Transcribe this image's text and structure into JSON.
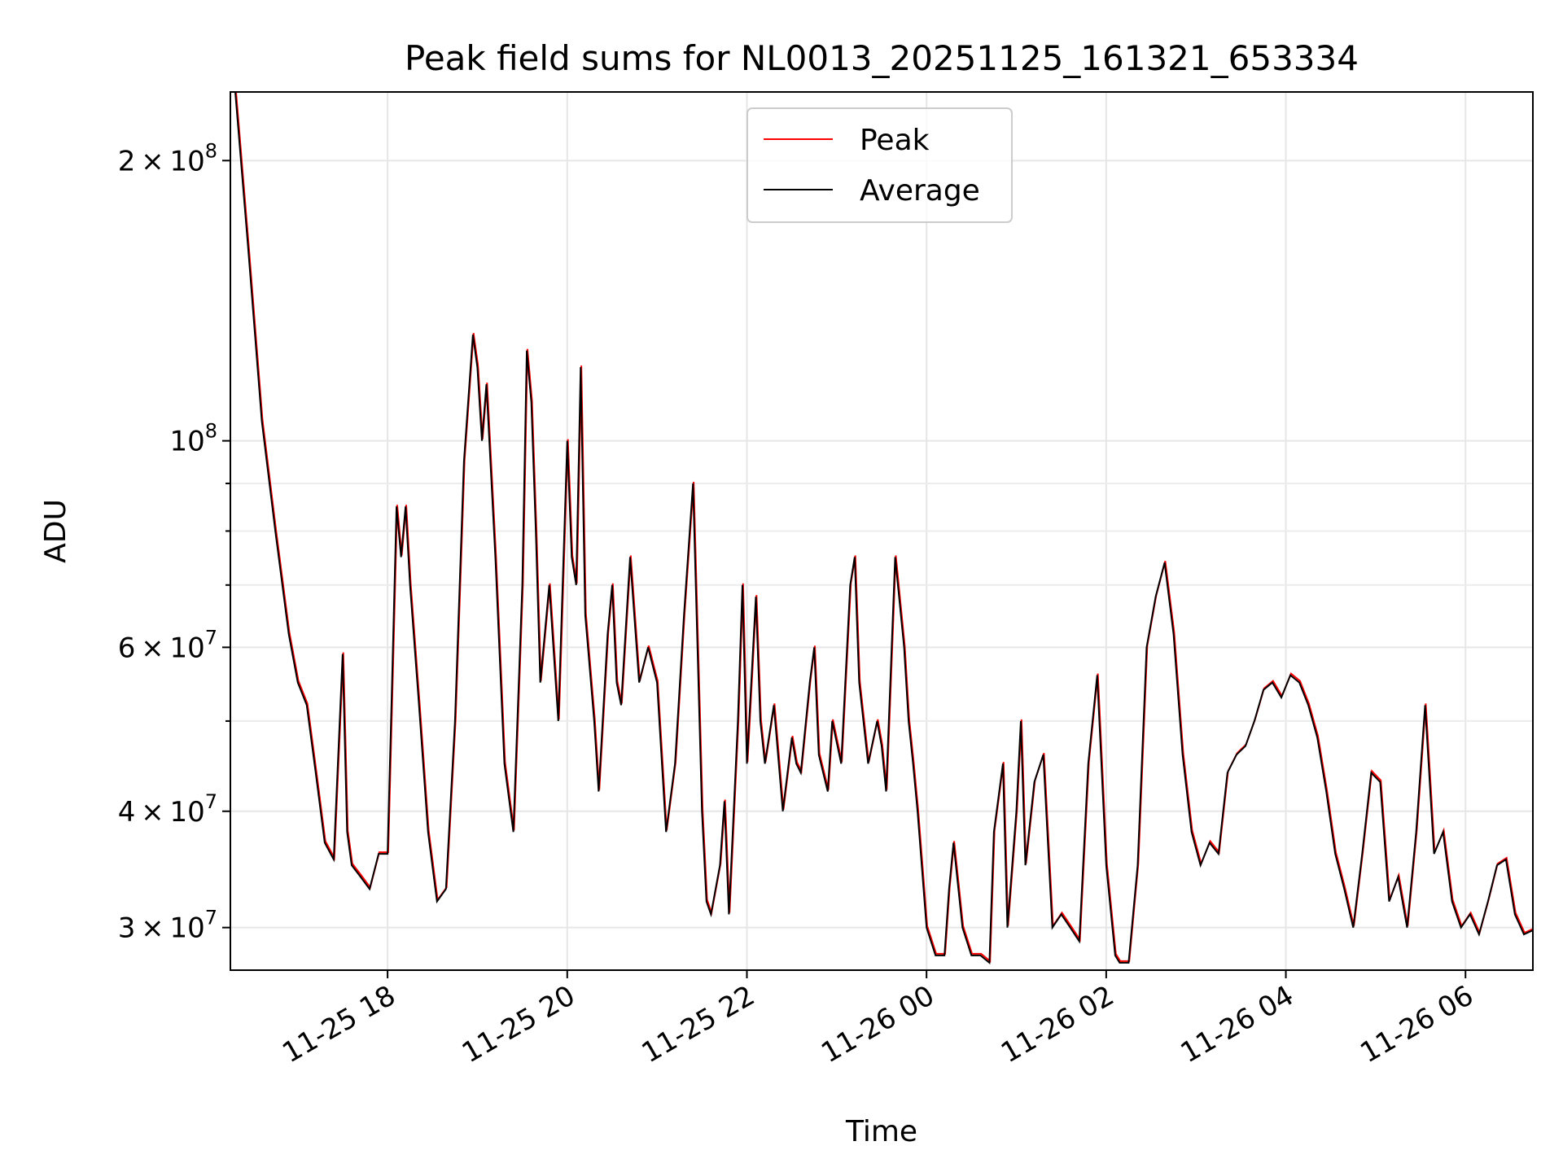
{
  "chart_data": {
    "type": "line",
    "title": "Peak field sums for NL0013_20251125_161321_653334",
    "xlabel": "Time",
    "ylabel": "ADU",
    "yscale": "log",
    "ylim": [
      27000000,
      237000000
    ],
    "xlim_hours": [
      16.25,
      30.75
    ],
    "grid": true,
    "legend_position": "upper center",
    "x_ticks": [
      {
        "hour": 18,
        "label": "11-25 18"
      },
      {
        "hour": 20,
        "label": "11-25 20"
      },
      {
        "hour": 22,
        "label": "11-25 22"
      },
      {
        "hour": 24,
        "label": "11-26 00"
      },
      {
        "hour": 26,
        "label": "11-26 02"
      },
      {
        "hour": 28,
        "label": "11-26 04"
      },
      {
        "hour": 30,
        "label": "11-26 06"
      }
    ],
    "y_ticks": [
      {
        "value": 30000000,
        "mantissa": "3",
        "exp": "7"
      },
      {
        "value": 40000000,
        "mantissa": "4",
        "exp": "7"
      },
      {
        "value": 60000000,
        "mantissa": "6",
        "exp": "7"
      },
      {
        "value": 100000000,
        "mantissa": "",
        "exp": "8"
      },
      {
        "value": 200000000,
        "mantissa": "2",
        "exp": "8"
      }
    ],
    "y_minor_ticks": [
      50000000,
      70000000,
      80000000,
      90000000
    ],
    "series": [
      {
        "name": "Peak",
        "color": "#ff0000"
      },
      {
        "name": "Average",
        "color": "#000000"
      }
    ],
    "average_points": [
      [
        16.3,
        240000000
      ],
      [
        16.45,
        160000000
      ],
      [
        16.6,
        105000000
      ],
      [
        16.75,
        80000000
      ],
      [
        16.9,
        62000000
      ],
      [
        17.0,
        55000000
      ],
      [
        17.1,
        52000000
      ],
      [
        17.2,
        44000000
      ],
      [
        17.3,
        37000000
      ],
      [
        17.4,
        35500000
      ],
      [
        17.5,
        59000000
      ],
      [
        17.55,
        38000000
      ],
      [
        17.6,
        35000000
      ],
      [
        17.7,
        34000000
      ],
      [
        17.8,
        33000000
      ],
      [
        17.9,
        36000000
      ],
      [
        18.0,
        36000000
      ],
      [
        18.05,
        55000000
      ],
      [
        18.1,
        85000000
      ],
      [
        18.15,
        75000000
      ],
      [
        18.2,
        85000000
      ],
      [
        18.25,
        70000000
      ],
      [
        18.35,
        52000000
      ],
      [
        18.45,
        38000000
      ],
      [
        18.55,
        32000000
      ],
      [
        18.65,
        33000000
      ],
      [
        18.75,
        50000000
      ],
      [
        18.85,
        95000000
      ],
      [
        18.95,
        130000000
      ],
      [
        19.0,
        120000000
      ],
      [
        19.05,
        100000000
      ],
      [
        19.1,
        115000000
      ],
      [
        19.2,
        75000000
      ],
      [
        19.3,
        45000000
      ],
      [
        19.4,
        38000000
      ],
      [
        19.5,
        70000000
      ],
      [
        19.55,
        125000000
      ],
      [
        19.6,
        110000000
      ],
      [
        19.65,
        80000000
      ],
      [
        19.7,
        55000000
      ],
      [
        19.8,
        70000000
      ],
      [
        19.9,
        50000000
      ],
      [
        20.0,
        100000000
      ],
      [
        20.05,
        75000000
      ],
      [
        20.1,
        70000000
      ],
      [
        20.15,
        120000000
      ],
      [
        20.2,
        65000000
      ],
      [
        20.3,
        50000000
      ],
      [
        20.35,
        42000000
      ],
      [
        20.45,
        62000000
      ],
      [
        20.5,
        70000000
      ],
      [
        20.55,
        55000000
      ],
      [
        20.6,
        52000000
      ],
      [
        20.7,
        75000000
      ],
      [
        20.8,
        55000000
      ],
      [
        20.9,
        60000000
      ],
      [
        21.0,
        55000000
      ],
      [
        21.1,
        38000000
      ],
      [
        21.2,
        45000000
      ],
      [
        21.3,
        65000000
      ],
      [
        21.4,
        90000000
      ],
      [
        21.45,
        60000000
      ],
      [
        21.5,
        40000000
      ],
      [
        21.55,
        32000000
      ],
      [
        21.6,
        31000000
      ],
      [
        21.7,
        35000000
      ],
      [
        21.75,
        41000000
      ],
      [
        21.8,
        31000000
      ],
      [
        21.9,
        50000000
      ],
      [
        21.95,
        70000000
      ],
      [
        22.0,
        45000000
      ],
      [
        22.1,
        68000000
      ],
      [
        22.15,
        50000000
      ],
      [
        22.2,
        45000000
      ],
      [
        22.3,
        52000000
      ],
      [
        22.4,
        40000000
      ],
      [
        22.5,
        48000000
      ],
      [
        22.55,
        45000000
      ],
      [
        22.6,
        44000000
      ],
      [
        22.7,
        55000000
      ],
      [
        22.75,
        60000000
      ],
      [
        22.8,
        46000000
      ],
      [
        22.9,
        42000000
      ],
      [
        22.95,
        50000000
      ],
      [
        23.05,
        45000000
      ],
      [
        23.15,
        70000000
      ],
      [
        23.2,
        75000000
      ],
      [
        23.25,
        55000000
      ],
      [
        23.35,
        45000000
      ],
      [
        23.45,
        50000000
      ],
      [
        23.5,
        47000000
      ],
      [
        23.55,
        42000000
      ],
      [
        23.65,
        75000000
      ],
      [
        23.75,
        60000000
      ],
      [
        23.8,
        50000000
      ],
      [
        23.85,
        45000000
      ],
      [
        23.9,
        40000000
      ],
      [
        24.0,
        30000000
      ],
      [
        24.1,
        28000000
      ],
      [
        24.2,
        28000000
      ],
      [
        24.25,
        33000000
      ],
      [
        24.3,
        37000000
      ],
      [
        24.4,
        30000000
      ],
      [
        24.5,
        28000000
      ],
      [
        24.6,
        28000000
      ],
      [
        24.7,
        27500000
      ],
      [
        24.75,
        38000000
      ],
      [
        24.85,
        45000000
      ],
      [
        24.9,
        30000000
      ],
      [
        25.0,
        40000000
      ],
      [
        25.05,
        50000000
      ],
      [
        25.1,
        35000000
      ],
      [
        25.2,
        43000000
      ],
      [
        25.3,
        46000000
      ],
      [
        25.4,
        30000000
      ],
      [
        25.5,
        31000000
      ],
      [
        25.6,
        30000000
      ],
      [
        25.7,
        29000000
      ],
      [
        25.8,
        45000000
      ],
      [
        25.9,
        56000000
      ],
      [
        26.0,
        35000000
      ],
      [
        26.1,
        28000000
      ],
      [
        26.15,
        27500000
      ],
      [
        26.25,
        27500000
      ],
      [
        26.35,
        35000000
      ],
      [
        26.45,
        60000000
      ],
      [
        26.55,
        68000000
      ],
      [
        26.65,
        74000000
      ],
      [
        26.75,
        62000000
      ],
      [
        26.85,
        46000000
      ],
      [
        26.95,
        38000000
      ],
      [
        27.05,
        35000000
      ],
      [
        27.15,
        37000000
      ],
      [
        27.25,
        36000000
      ],
      [
        27.35,
        44000000
      ],
      [
        27.45,
        46000000
      ],
      [
        27.55,
        47000000
      ],
      [
        27.65,
        50000000
      ],
      [
        27.75,
        54000000
      ],
      [
        27.85,
        55000000
      ],
      [
        27.95,
        53000000
      ],
      [
        28.05,
        56000000
      ],
      [
        28.15,
        55000000
      ],
      [
        28.25,
        52000000
      ],
      [
        28.35,
        48000000
      ],
      [
        28.45,
        42000000
      ],
      [
        28.55,
        36000000
      ],
      [
        28.65,
        33000000
      ],
      [
        28.75,
        30000000
      ],
      [
        28.85,
        36000000
      ],
      [
        28.95,
        44000000
      ],
      [
        29.05,
        43000000
      ],
      [
        29.15,
        32000000
      ],
      [
        29.25,
        34000000
      ],
      [
        29.35,
        30000000
      ],
      [
        29.45,
        38000000
      ],
      [
        29.55,
        52000000
      ],
      [
        29.65,
        36000000
      ],
      [
        29.75,
        38000000
      ],
      [
        29.85,
        32000000
      ],
      [
        29.95,
        30000000
      ],
      [
        30.05,
        31000000
      ],
      [
        30.15,
        29500000
      ],
      [
        30.25,
        32000000
      ],
      [
        30.35,
        35000000
      ],
      [
        30.45,
        35500000
      ],
      [
        30.55,
        31000000
      ],
      [
        30.65,
        29500000
      ],
      [
        30.75,
        29800000
      ]
    ]
  }
}
